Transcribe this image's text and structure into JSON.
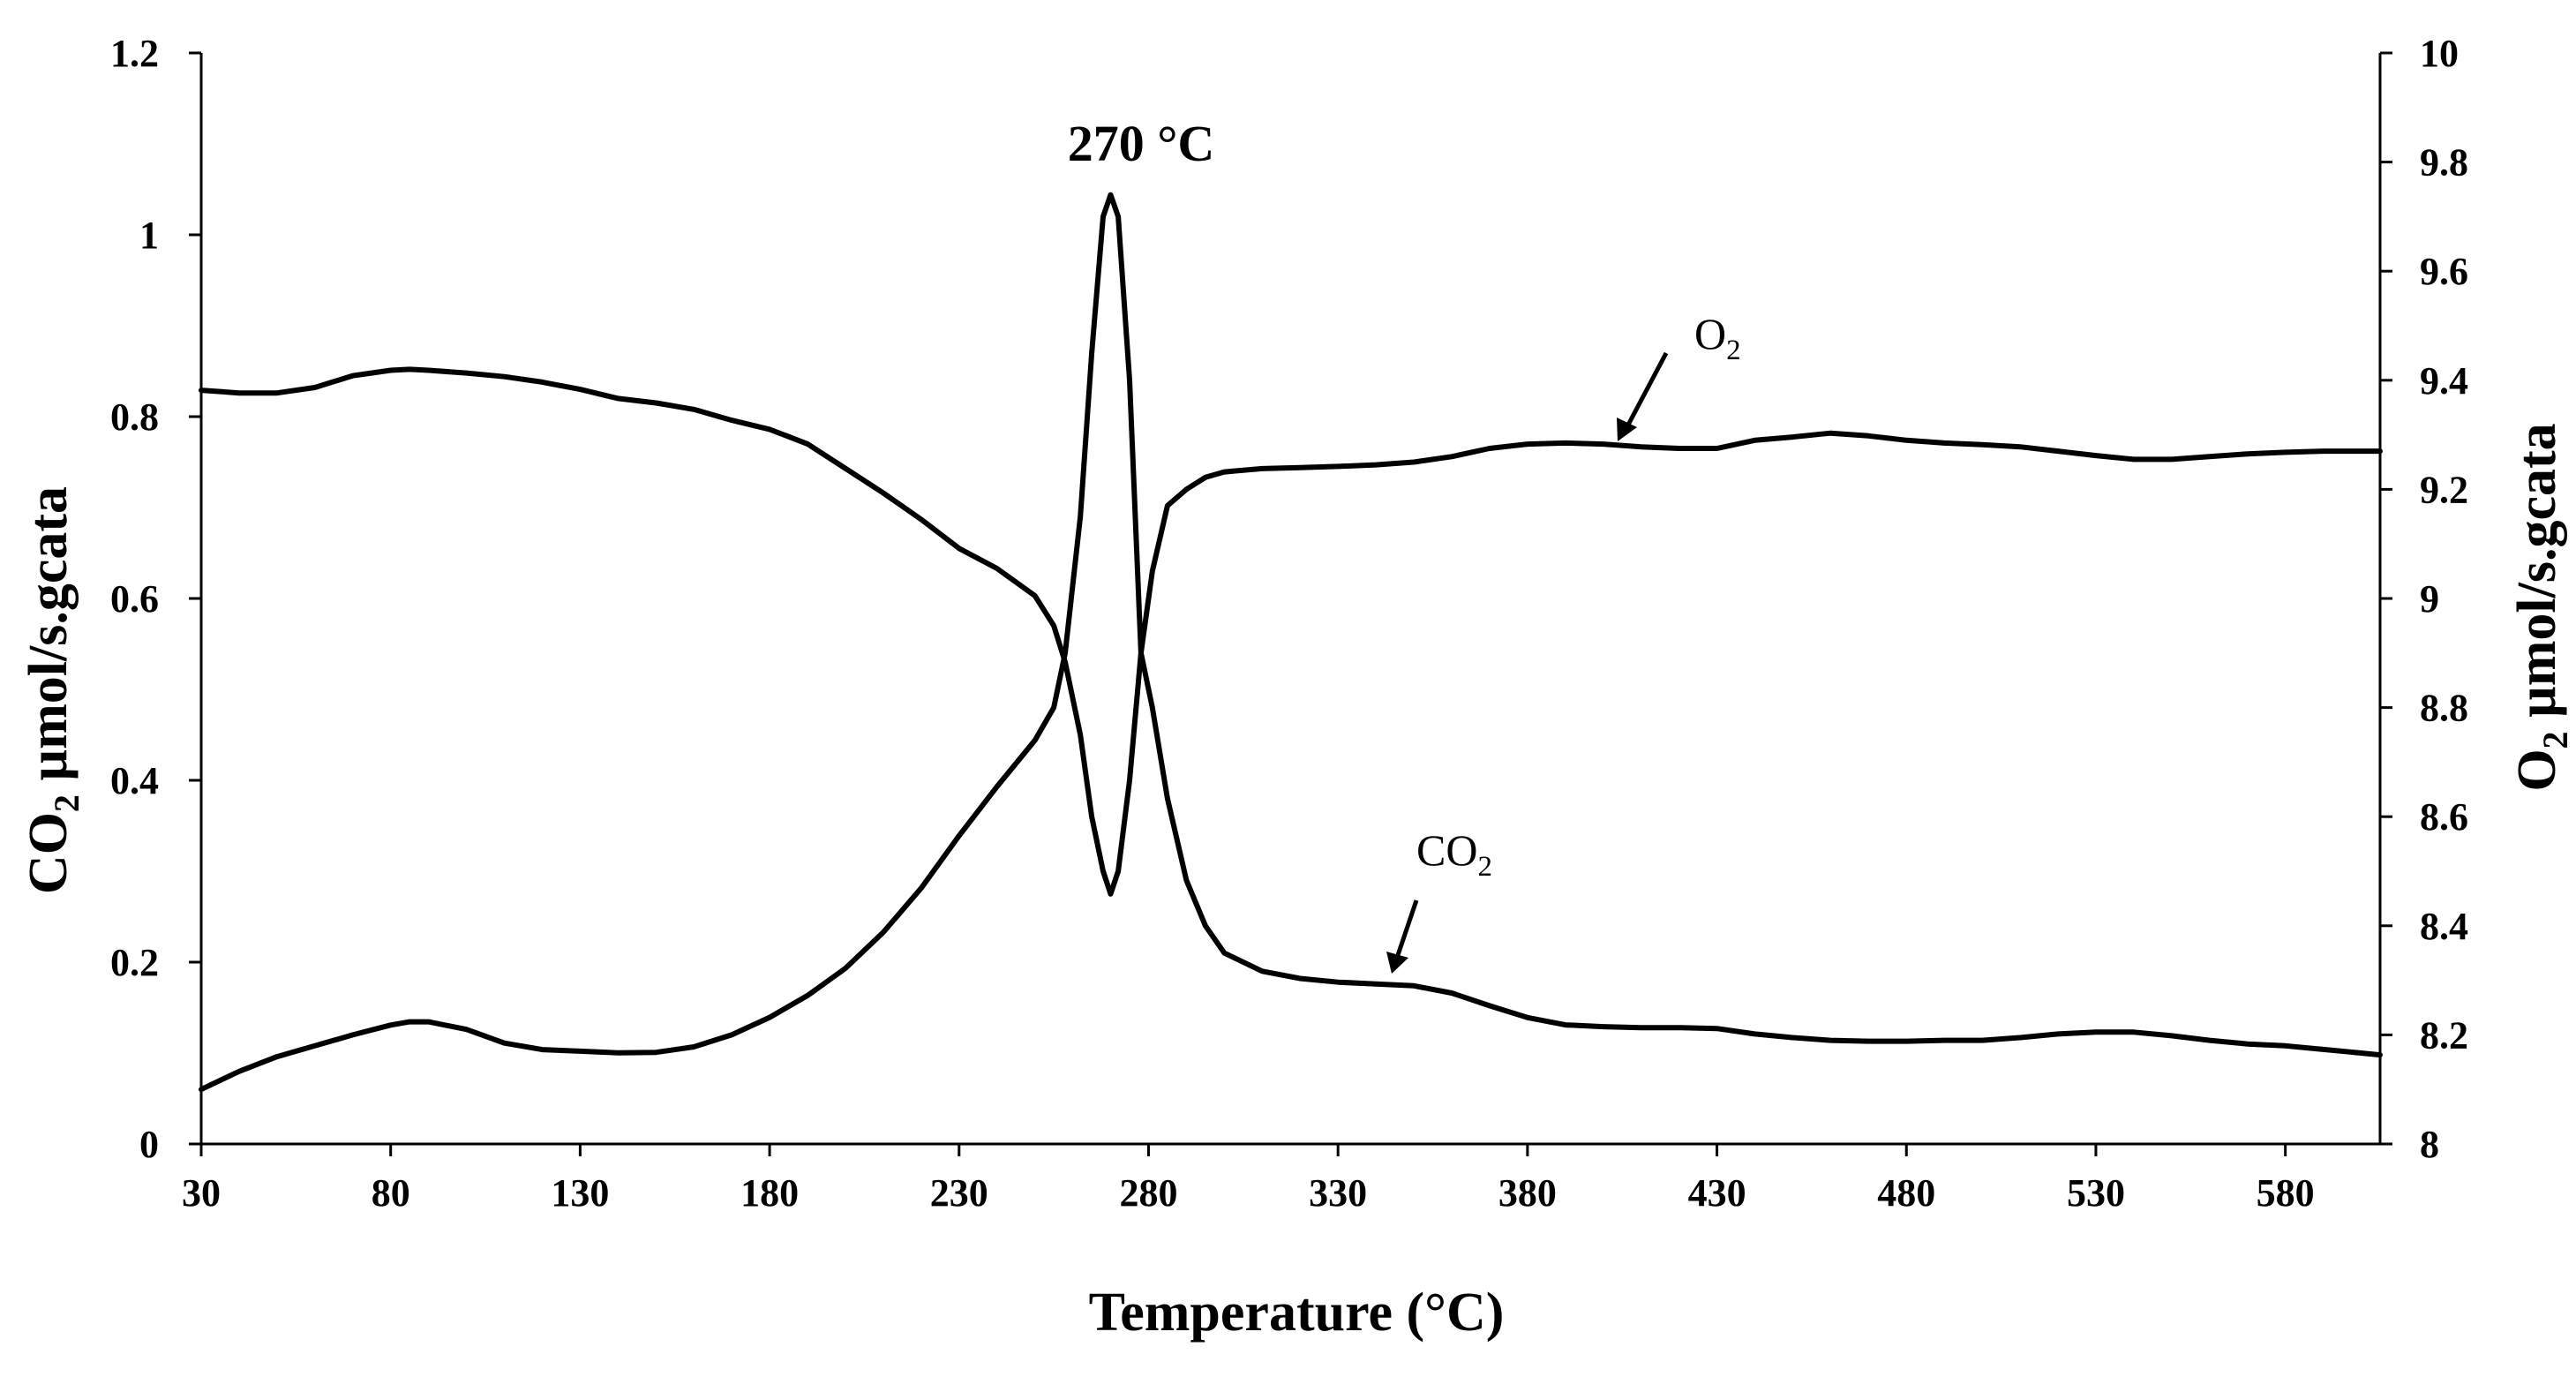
{
  "chart_data": {
    "type": "line",
    "annotation": "270 °C",
    "xlabel": "Temperature (°C)",
    "ylabel_left": {
      "main": "CO",
      "sub": "2",
      "rest": " µmol/s.gcata"
    },
    "ylabel_right": {
      "main": "O",
      "sub": "2",
      "rest": " µmol/s.gcata"
    },
    "xlim": [
      30,
      605
    ],
    "ylim_left": [
      0,
      1.2
    ],
    "ylim_right": [
      8,
      10
    ],
    "x_ticks": [
      30,
      80,
      130,
      180,
      230,
      280,
      330,
      380,
      430,
      480,
      530,
      580
    ],
    "x_tick_labels": [
      "30",
      "80",
      "130",
      "180",
      "230",
      "280",
      "330",
      "380",
      "430",
      "480",
      "530",
      "580"
    ],
    "y_left_ticks": [
      0,
      0.2,
      0.4,
      0.6,
      0.8,
      1,
      1.2
    ],
    "y_left_tick_labels": [
      "0",
      "0.2",
      "0.4",
      "0.6",
      "0.8",
      "1",
      "1.2"
    ],
    "y_right_ticks": [
      8,
      8.2,
      8.4,
      8.6,
      8.8,
      9,
      9.2,
      9.4,
      9.6,
      9.8,
      10
    ],
    "y_right_tick_labels": [
      "8",
      "8.2",
      "8.4",
      "8.6",
      "8.8",
      "9",
      "9.2",
      "9.4",
      "9.6",
      "9.8",
      "10"
    ],
    "grid": false,
    "series": [
      {
        "name": "CO2",
        "label_main": "CO",
        "label_sub": "2",
        "axis": "left",
        "color": "#000000",
        "x": [
          30,
          40,
          50,
          60,
          70,
          80,
          85,
          90,
          100,
          110,
          120,
          130,
          140,
          150,
          160,
          170,
          180,
          190,
          200,
          210,
          220,
          230,
          240,
          250,
          255,
          258,
          262,
          265,
          268,
          270,
          272,
          275,
          278,
          281,
          285,
          290,
          295,
          300,
          310,
          320,
          330,
          340,
          350,
          360,
          370,
          380,
          390,
          400,
          410,
          420,
          430,
          440,
          450,
          460,
          470,
          480,
          490,
          500,
          510,
          520,
          530,
          540,
          550,
          560,
          570,
          580,
          590,
          600,
          605
        ],
        "y": [
          0.829,
          0.826,
          0.826,
          0.832,
          0.845,
          0.851,
          0.852,
          0.851,
          0.848,
          0.844,
          0.838,
          0.83,
          0.82,
          0.815,
          0.808,
          0.796,
          0.786,
          0.77,
          0.743,
          0.716,
          0.687,
          0.655,
          0.633,
          0.603,
          0.57,
          0.53,
          0.45,
          0.36,
          0.3,
          0.275,
          0.3,
          0.4,
          0.54,
          0.48,
          0.38,
          0.29,
          0.24,
          0.21,
          0.19,
          0.182,
          0.178,
          0.176,
          0.174,
          0.166,
          0.152,
          0.139,
          0.131,
          0.129,
          0.128,
          0.128,
          0.127,
          0.121,
          0.117,
          0.114,
          0.113,
          0.113,
          0.114,
          0.114,
          0.117,
          0.121,
          0.123,
          0.123,
          0.119,
          0.114,
          0.11,
          0.108,
          0.104,
          0.1,
          0.098
        ]
      },
      {
        "name": "O2",
        "label_main": "O",
        "label_sub": "2",
        "axis": "right",
        "color": "#000000",
        "x": [
          30,
          40,
          50,
          60,
          70,
          80,
          85,
          90,
          100,
          110,
          120,
          130,
          140,
          150,
          160,
          170,
          180,
          190,
          200,
          210,
          220,
          230,
          240,
          250,
          255,
          258,
          262,
          265,
          268,
          270,
          272,
          275,
          278,
          281,
          285,
          290,
          295,
          300,
          310,
          320,
          330,
          340,
          350,
          360,
          370,
          380,
          390,
          400,
          410,
          420,
          430,
          440,
          450,
          460,
          470,
          480,
          490,
          500,
          510,
          520,
          530,
          540,
          550,
          560,
          570,
          580,
          590,
          600,
          605
        ],
        "y": [
          8.1,
          8.133,
          8.16,
          8.18,
          8.2,
          8.218,
          8.224,
          8.224,
          8.21,
          8.185,
          8.173,
          8.17,
          8.167,
          8.168,
          8.178,
          8.2,
          8.232,
          8.272,
          8.322,
          8.388,
          8.469,
          8.565,
          8.655,
          8.74,
          8.8,
          8.9,
          9.15,
          9.45,
          9.7,
          9.74,
          9.7,
          9.4,
          8.9,
          9.05,
          9.17,
          9.2,
          9.222,
          9.232,
          9.238,
          9.24,
          9.242,
          9.245,
          9.25,
          9.26,
          9.275,
          9.283,
          9.285,
          9.283,
          9.278,
          9.275,
          9.275,
          9.29,
          9.296,
          9.303,
          9.298,
          9.29,
          9.285,
          9.282,
          9.278,
          9.27,
          9.262,
          9.255,
          9.255,
          9.26,
          9.265,
          9.268,
          9.27,
          9.27,
          9.27
        ]
      }
    ]
  }
}
